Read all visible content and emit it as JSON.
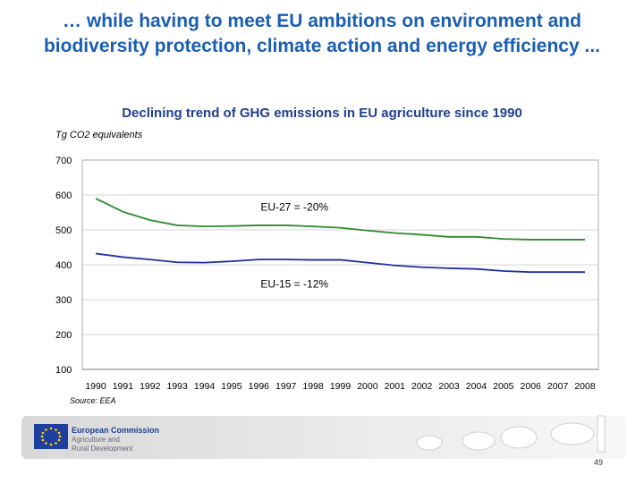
{
  "slide": {
    "title": "… while having to meet EU ambitions on environment and biodiversity protection, climate action and energy efficiency ...",
    "page_number": "49",
    "source": "Source: EEA",
    "logo": {
      "line1": "European Commission",
      "line2": "Agriculture and",
      "line3": "Rural Development"
    }
  },
  "chart_data": {
    "type": "line",
    "title": "Declining trend of GHG emissions in EU agriculture since 1990",
    "ylabel": "Tg CO2 equivalents",
    "xlabel": "",
    "ylim": [
      100,
      700
    ],
    "yticks": [
      100,
      200,
      300,
      400,
      500,
      600,
      700
    ],
    "categories": [
      "1990",
      "1991",
      "1992",
      "1993",
      "1994",
      "1995",
      "1996",
      "1997",
      "1998",
      "1999",
      "2000",
      "2001",
      "2002",
      "2003",
      "2004",
      "2005",
      "2006",
      "2007",
      "2008"
    ],
    "grid": "horizontal",
    "series": [
      {
        "name": "",
        "color": "#2e8b2e",
        "values": [
          590,
          552,
          528,
          513,
          510,
          511,
          513,
          513,
          510,
          506,
          498,
          491,
          486,
          480,
          480,
          474,
          472,
          472,
          472
        ]
      },
      {
        "name": "",
        "color": "#1f2f9f",
        "values": [
          432,
          422,
          415,
          407,
          406,
          410,
          415,
          415,
          414,
          414,
          406,
          398,
          393,
          390,
          388,
          382,
          379,
          379,
          379
        ]
      }
    ],
    "annotations": [
      {
        "text": "EU-27 = -20%",
        "x": "1996",
        "y": 565
      },
      {
        "text": "EU-15 = -12%",
        "x": "1996",
        "y": 345
      }
    ]
  }
}
